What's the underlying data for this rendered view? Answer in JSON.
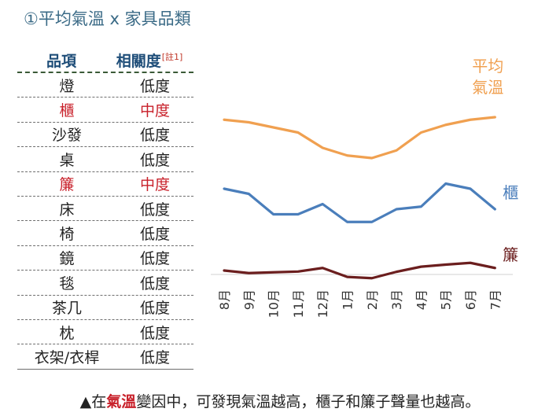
{
  "title": "①平均氣溫 x 家具品類",
  "table": {
    "headers": {
      "item": "品項",
      "correlation": "相關度",
      "note": "[註1]"
    },
    "rows": [
      {
        "item": "燈",
        "correlation": "低度",
        "highlight": false
      },
      {
        "item": "櫃",
        "correlation": "中度",
        "highlight": true
      },
      {
        "item": "沙發",
        "correlation": "低度",
        "highlight": false
      },
      {
        "item": "桌",
        "correlation": "低度",
        "highlight": false
      },
      {
        "item": "簾",
        "correlation": "中度",
        "highlight": true
      },
      {
        "item": "床",
        "correlation": "低度",
        "highlight": false
      },
      {
        "item": "椅",
        "correlation": "低度",
        "highlight": false
      },
      {
        "item": "鏡",
        "correlation": "低度",
        "highlight": false
      },
      {
        "item": "毯",
        "correlation": "低度",
        "highlight": false
      },
      {
        "item": "茶几",
        "correlation": "低度",
        "highlight": false
      },
      {
        "item": "枕",
        "correlation": "低度",
        "highlight": false
      },
      {
        "item": "衣架/衣桿",
        "correlation": "低度",
        "highlight": false
      }
    ]
  },
  "chart_data": {
    "type": "line",
    "categories": [
      "8月",
      "9月",
      "10月",
      "11月",
      "12月",
      "1月",
      "2月",
      "3月",
      "4月",
      "5月",
      "6月",
      "7月"
    ],
    "series": [
      {
        "name": "平均氣溫",
        "color": "#f0a050",
        "values": [
          87,
          86,
          84,
          82,
          76,
          73,
          72,
          75,
          82,
          85,
          87,
          88
        ]
      },
      {
        "name": "櫃",
        "color": "#4a7ebb",
        "values": [
          60,
          58,
          50,
          50,
          54,
          47,
          47,
          52,
          53,
          62,
          60,
          52
        ]
      },
      {
        "name": "簾",
        "color": "#6b1e1e",
        "values": [
          28,
          27,
          27.3,
          27.6,
          29,
          25.5,
          25,
          27.5,
          29.5,
          30.3,
          31,
          29
        ]
      }
    ],
    "ylim": [
      20,
      100
    ],
    "grid": false,
    "legend": "inline-right"
  },
  "footer": {
    "prefix": "▲在",
    "emphasis": "氣溫",
    "suffix": "變因中，可發現氣溫越高，櫃子和簾子聲量也越高。"
  }
}
